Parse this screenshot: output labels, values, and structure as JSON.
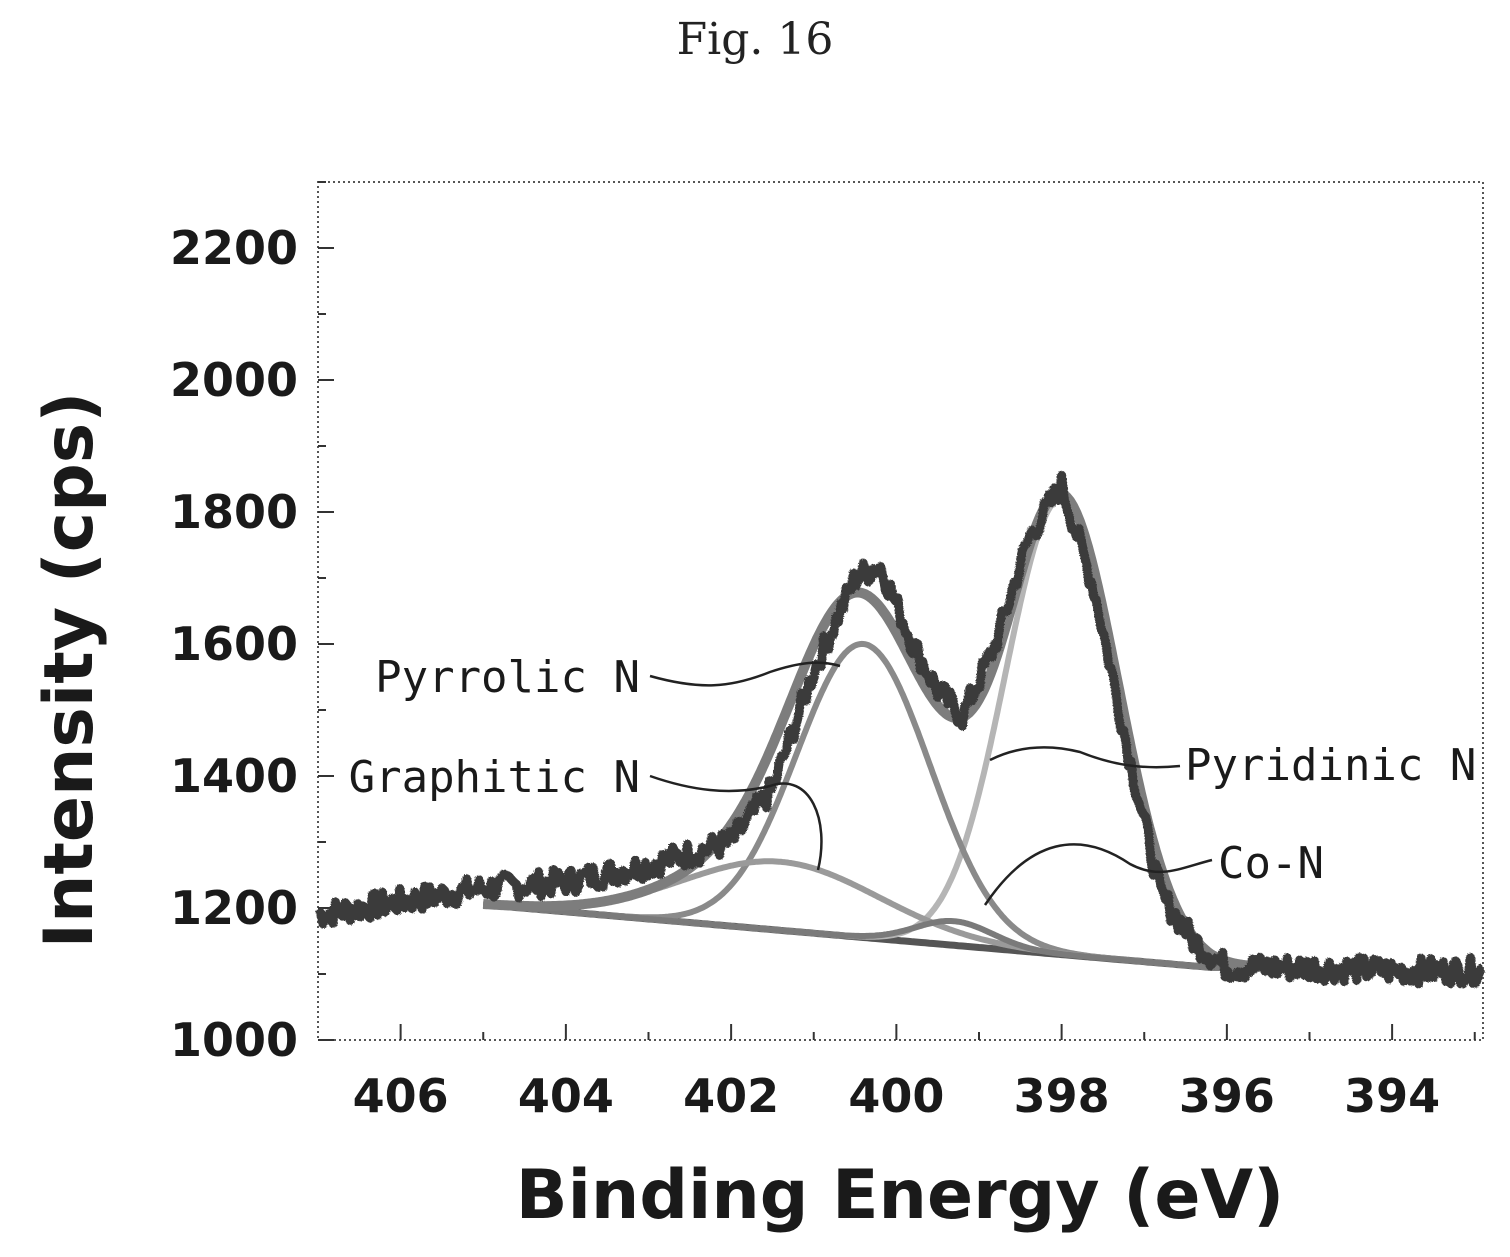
{
  "figure_label": "Fig. 16",
  "chart_data": {
    "type": "line",
    "title": "",
    "xlabel": "Binding Energy (eV)",
    "ylabel": "Intensity (cps)",
    "xlim": [
      407.0,
      392.9
    ],
    "ylim": [
      1000,
      2300
    ],
    "x_reversed": true,
    "x_ticks": [
      406,
      404,
      402,
      400,
      398,
      396,
      394
    ],
    "y_ticks": [
      1000,
      1200,
      1400,
      1600,
      1800,
      2000,
      2200
    ],
    "grid": false,
    "legend": "none",
    "baseline": {
      "start": [
        405.0,
        1205
      ],
      "end": [
        396.2,
        1110
      ]
    },
    "components": [
      {
        "name": "Pyridinic N",
        "center": 398.0,
        "height": 1820,
        "fwhm": 1.6
      },
      {
        "name": "Pyrrolic N",
        "center": 400.4,
        "height": 1600,
        "fwhm": 1.9
      },
      {
        "name": "Graphitic N",
        "center": 401.4,
        "height": 1270,
        "fwhm": 2.8
      },
      {
        "name": "Co-N",
        "center": 399.3,
        "height": 1180,
        "fwhm": 1.1
      }
    ],
    "series": [
      {
        "name": "Measured",
        "x": [
          407.0,
          405.0,
          404.0,
          403.0,
          402.0,
          401.5,
          401.0,
          400.5,
          400.2,
          399.8,
          399.5,
          399.2,
          398.8,
          398.4,
          398.0,
          397.6,
          397.2,
          396.8,
          396.4,
          396.0,
          395.0,
          394.0,
          392.9
        ],
        "y": [
          1190,
          1230,
          1240,
          1265,
          1300,
          1380,
          1560,
          1700,
          1720,
          1600,
          1530,
          1490,
          1600,
          1760,
          1840,
          1680,
          1440,
          1220,
          1150,
          1110,
          1110,
          1105,
          1105
        ]
      }
    ],
    "annotations": [
      {
        "text": "Pyrrolic N"
      },
      {
        "text": "Graphitic N"
      },
      {
        "text": "Pyridinic N"
      },
      {
        "text": "Co-N"
      }
    ]
  }
}
